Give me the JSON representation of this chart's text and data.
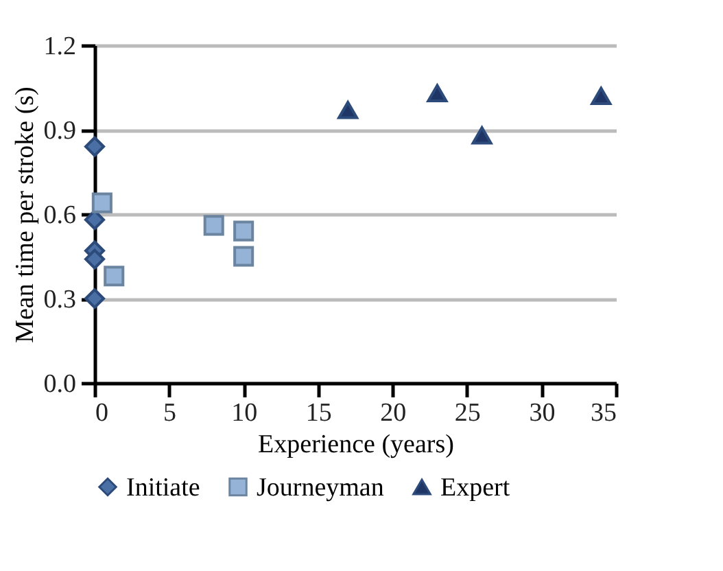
{
  "chart_data": {
    "type": "scatter",
    "xlabel": "Experience (years)",
    "ylabel": "Mean time per stroke (s)",
    "xlim": [
      0,
      35
    ],
    "xticks": [
      0,
      5,
      10,
      15,
      20,
      25,
      30,
      35
    ],
    "ylim": [
      0,
      1.2
    ],
    "yticks": [
      {
        "value": 0,
        "label": "0.0"
      },
      0.3,
      0.6,
      0.9,
      1.2
    ],
    "grid": "y",
    "legend": "bottom",
    "series": [
      {
        "name": "Initiate",
        "color": "#4a6fa5",
        "marker": "diamond",
        "x": [
          0,
          0,
          0,
          0,
          0
        ],
        "values": [
          0.84,
          0.58,
          0.47,
          0.44,
          0.3
        ]
      },
      {
        "name": "Journeyman",
        "color": "#95b3d7",
        "marker": "square",
        "x": [
          0.5,
          1.3,
          8,
          10,
          10
        ],
        "values": [
          0.64,
          0.38,
          0.56,
          0.54,
          0.45
        ]
      },
      {
        "name": "Expert",
        "color": "#1f3566",
        "marker": "triangle",
        "x": [
          17,
          23,
          26,
          34
        ],
        "values": [
          0.97,
          1.03,
          0.88,
          1.02
        ]
      }
    ]
  }
}
